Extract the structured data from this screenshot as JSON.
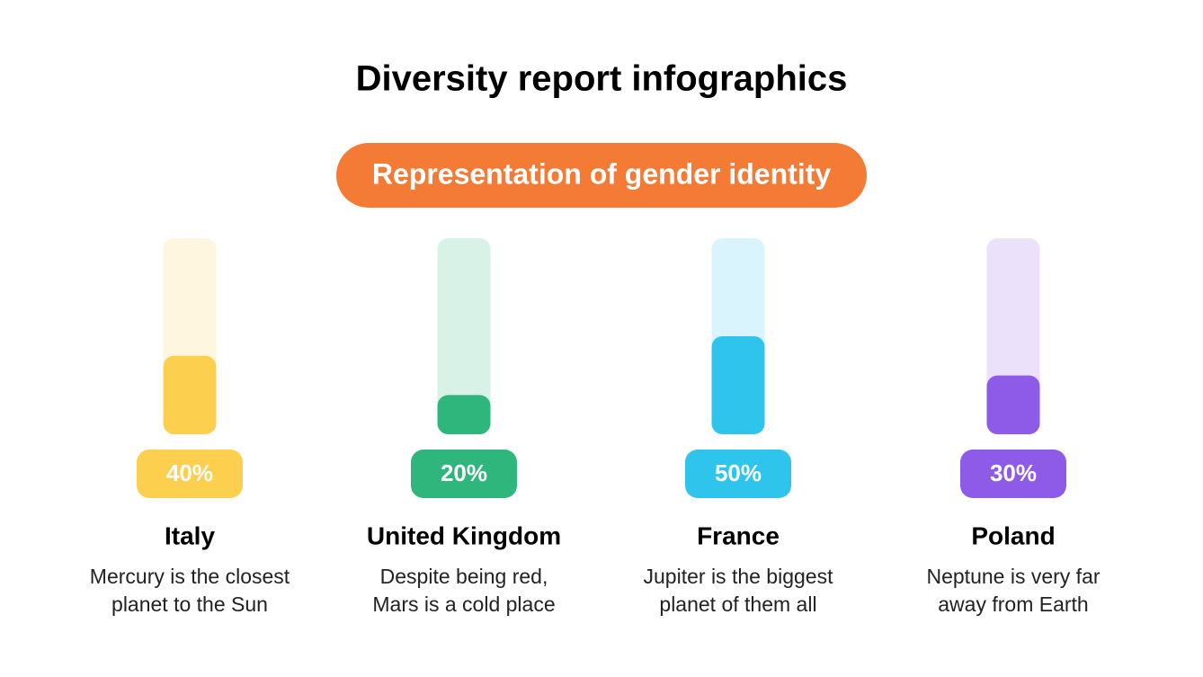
{
  "chart_data": {
    "type": "bar",
    "title": "Diversity report infographics",
    "subtitle": "Representation of gender identity",
    "subtitle_color": "#f47b35",
    "categories": [
      "Italy",
      "United Kingdom",
      "France",
      "Poland"
    ],
    "values": [
      40,
      20,
      50,
      30
    ],
    "value_labels": [
      "40%",
      "20%",
      "50%",
      "30%"
    ],
    "colors": [
      "#fdcf4f",
      "#2eb67d",
      "#2ec4ec",
      "#8e5be8"
    ],
    "descriptions": [
      [
        "Mercury is the closest",
        "planet to the Sun"
      ],
      [
        "Despite being red,",
        "Mars is a cold place"
      ],
      [
        "Jupiter is the biggest",
        "planet of them all"
      ],
      [
        "Neptune is very far",
        "away from Earth"
      ]
    ]
  }
}
